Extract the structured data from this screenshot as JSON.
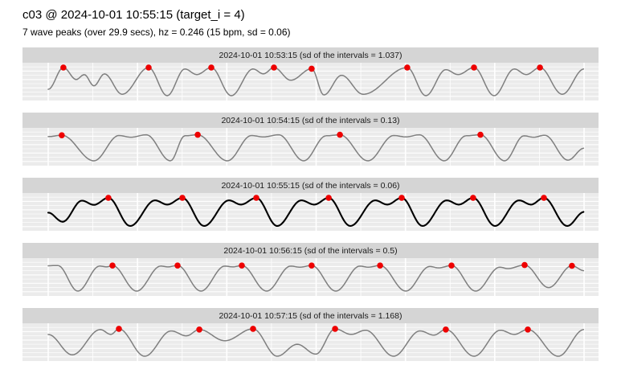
{
  "title": "c03 @ 2024-10-01 10:55:15 (target_i = 4)",
  "subtitle": "7 wave peaks (over 29.9 secs), hz = 0.246 (15 bpm, sd = 0.06)",
  "chart_data": {
    "type": "line",
    "x_unit": "seconds",
    "x_range": [
      0,
      30
    ],
    "y_range": [
      -1,
      1
    ],
    "grid": {
      "x_major_every_s": 5,
      "x_minor_every_s": 2.5,
      "h_line_count": 8
    },
    "legend": "none",
    "colors": {
      "panel_bg": "#ebebeb",
      "strip_bg": "#d5d5d5",
      "gridline": "#ffffff",
      "wave_gray": "#7f7f7f",
      "wave_target": "#000000",
      "peak_dot": "#ee0000"
    },
    "panels": [
      {
        "strip_label": "2024-10-01 10:53:15 (sd of the intervals = 1.037)",
        "timestamp": "2024-10-01 10:53:15",
        "sd_of_intervals": 1.037,
        "is_target": false,
        "peak_times_s": [
          0.85,
          5.62,
          9.13,
          12.64,
          14.75,
          20.1,
          23.84,
          27.53
        ],
        "waveform": [
          [
            0,
            -0.55
          ],
          [
            0.85,
            1.0
          ],
          [
            1.57,
            0.15
          ],
          [
            2.02,
            0.5
          ],
          [
            2.56,
            -0.3
          ],
          [
            3.15,
            0.55
          ],
          [
            4.14,
            -0.9
          ],
          [
            5.62,
            1.0
          ],
          [
            6.66,
            -1.0
          ],
          [
            7.65,
            0.9
          ],
          [
            8.32,
            0.5
          ],
          [
            9.13,
            1.0
          ],
          [
            10.25,
            -1.0
          ],
          [
            11.47,
            0.9
          ],
          [
            12.05,
            0.55
          ],
          [
            12.64,
            1.0
          ],
          [
            13.58,
            0.1
          ],
          [
            14.75,
            0.92
          ],
          [
            15.43,
            -0.95
          ],
          [
            16.42,
            0.45
          ],
          [
            17.63,
            -0.9
          ],
          [
            20.1,
            1.0
          ],
          [
            21.14,
            -1.0
          ],
          [
            22.26,
            0.85
          ],
          [
            22.94,
            0.5
          ],
          [
            23.84,
            1.0
          ],
          [
            24.96,
            -1.0
          ],
          [
            26.09,
            0.9
          ],
          [
            26.76,
            0.5
          ],
          [
            27.53,
            1.0
          ],
          [
            28.78,
            -0.9
          ],
          [
            30,
            0.9
          ]
        ]
      },
      {
        "strip_label": "2024-10-01 10:54:15 (sd of the intervals = 0.13)",
        "timestamp": "2024-10-01 10:54:15",
        "sd_of_intervals": 0.13,
        "is_target": false,
        "peak_times_s": [
          0.76,
          8.37,
          16.33,
          24.2
        ],
        "waveform": [
          [
            0,
            0.72
          ],
          [
            0.76,
            0.82
          ],
          [
            2.56,
            -1.0
          ],
          [
            3.96,
            0.8
          ],
          [
            4.63,
            0.68
          ],
          [
            5.49,
            0.85
          ],
          [
            6.84,
            -1.0
          ],
          [
            7.65,
            0.78
          ],
          [
            8.37,
            0.85
          ],
          [
            10.03,
            -1.0
          ],
          [
            11.38,
            0.8
          ],
          [
            12.05,
            0.7
          ],
          [
            12.91,
            0.85
          ],
          [
            14.3,
            -1.0
          ],
          [
            15.56,
            0.78
          ],
          [
            16.33,
            0.85
          ],
          [
            17.9,
            -1.0
          ],
          [
            19.34,
            0.8
          ],
          [
            20.02,
            0.7
          ],
          [
            20.78,
            0.85
          ],
          [
            22.17,
            -1.0
          ],
          [
            23.39,
            0.78
          ],
          [
            24.2,
            0.85
          ],
          [
            25.55,
            -1.0
          ],
          [
            26.63,
            0.78
          ],
          [
            27.17,
            0.68
          ],
          [
            27.8,
            0.82
          ],
          [
            29.1,
            -0.95
          ],
          [
            30,
            -0.1
          ]
        ]
      },
      {
        "strip_label": "2024-10-01 10:55:15 (sd of the intervals = 0.06)",
        "timestamp": "2024-10-01 10:55:15",
        "sd_of_intervals": 0.06,
        "is_target": true,
        "peak_times_s": [
          3.37,
          7.51,
          11.65,
          15.7,
          19.79,
          23.79,
          27.75
        ],
        "waveform": [
          [
            0,
            -0.05
          ],
          [
            0.81,
            -0.7
          ],
          [
            1.89,
            0.8
          ],
          [
            2.56,
            0.5
          ],
          [
            3.37,
            1.0
          ],
          [
            4.59,
            -1.0
          ],
          [
            5.98,
            0.82
          ],
          [
            6.66,
            0.52
          ],
          [
            7.51,
            1.0
          ],
          [
            8.73,
            -1.0
          ],
          [
            10.12,
            0.82
          ],
          [
            10.79,
            0.52
          ],
          [
            11.65,
            1.0
          ],
          [
            12.82,
            -1.0
          ],
          [
            14.17,
            0.82
          ],
          [
            14.89,
            0.52
          ],
          [
            15.7,
            1.0
          ],
          [
            16.91,
            -1.0
          ],
          [
            18.31,
            0.82
          ],
          [
            18.98,
            0.52
          ],
          [
            19.79,
            1.0
          ],
          [
            20.96,
            -1.0
          ],
          [
            22.31,
            0.82
          ],
          [
            22.98,
            0.52
          ],
          [
            23.79,
            1.0
          ],
          [
            25.01,
            -1.0
          ],
          [
            26.36,
            0.82
          ],
          [
            27.03,
            0.52
          ],
          [
            27.75,
            1.0
          ],
          [
            29.06,
            -1.0
          ],
          [
            30,
            0.0
          ]
        ]
      },
      {
        "strip_label": "2024-10-01 10:56:15 (sd of the intervals = 0.5)",
        "timestamp": "2024-10-01 10:56:15",
        "sd_of_intervals": 0.5,
        "is_target": false,
        "peak_times_s": [
          3.6,
          7.24,
          10.84,
          14.75,
          18.58,
          22.58,
          26.67,
          29.32
        ],
        "waveform": [
          [
            0,
            0.8
          ],
          [
            0.54,
            0.82
          ],
          [
            1.66,
            -1.0
          ],
          [
            2.88,
            0.78
          ],
          [
            3.28,
            0.72
          ],
          [
            3.6,
            0.82
          ],
          [
            4.95,
            -1.0
          ],
          [
            6.3,
            0.78
          ],
          [
            6.7,
            0.72
          ],
          [
            7.24,
            0.82
          ],
          [
            8.55,
            -1.0
          ],
          [
            9.89,
            0.78
          ],
          [
            10.34,
            0.72
          ],
          [
            10.84,
            0.82
          ],
          [
            12.23,
            -1.0
          ],
          [
            13.58,
            0.78
          ],
          [
            14.08,
            0.7
          ],
          [
            14.75,
            0.82
          ],
          [
            16.1,
            -1.0
          ],
          [
            17.45,
            0.78
          ],
          [
            17.9,
            0.7
          ],
          [
            18.58,
            0.82
          ],
          [
            20.02,
            -1.0
          ],
          [
            21.36,
            0.75
          ],
          [
            21.86,
            0.65
          ],
          [
            22.58,
            0.82
          ],
          [
            23.93,
            -1.0
          ],
          [
            25.28,
            0.7
          ],
          [
            25.73,
            0.6
          ],
          [
            26.67,
            0.85
          ],
          [
            28.02,
            -0.75
          ],
          [
            29.32,
            0.8
          ],
          [
            30,
            0.45
          ]
        ]
      },
      {
        "strip_label": "2024-10-01 10:57:15 (sd of the intervals = 1.168)",
        "timestamp": "2024-10-01 10:57:15",
        "sd_of_intervals": 1.168,
        "is_target": false,
        "peak_times_s": [
          3.96,
          8.46,
          11.47,
          16.06,
          22.26,
          26.85
        ],
        "waveform": [
          [
            0,
            0.55
          ],
          [
            1.35,
            -0.9
          ],
          [
            2.92,
            0.9
          ],
          [
            3.51,
            0.55
          ],
          [
            3.96,
            0.95
          ],
          [
            5.4,
            -1.0
          ],
          [
            6.88,
            0.8
          ],
          [
            7.74,
            0.45
          ],
          [
            8.46,
            0.9
          ],
          [
            9.89,
            0.1
          ],
          [
            11.47,
            0.95
          ],
          [
            12.82,
            -1.0
          ],
          [
            13.94,
            -0.15
          ],
          [
            14.98,
            -0.85
          ],
          [
            16.06,
            0.95
          ],
          [
            16.96,
            0.55
          ],
          [
            17.77,
            0.85
          ],
          [
            19.34,
            -1.0
          ],
          [
            20.82,
            0.8
          ],
          [
            21.59,
            0.5
          ],
          [
            22.26,
            0.9
          ],
          [
            23.84,
            -1.0
          ],
          [
            25.32,
            0.85
          ],
          [
            26.09,
            0.55
          ],
          [
            26.85,
            0.9
          ],
          [
            28.56,
            -1.0
          ],
          [
            30,
            0.9
          ]
        ]
      }
    ]
  }
}
